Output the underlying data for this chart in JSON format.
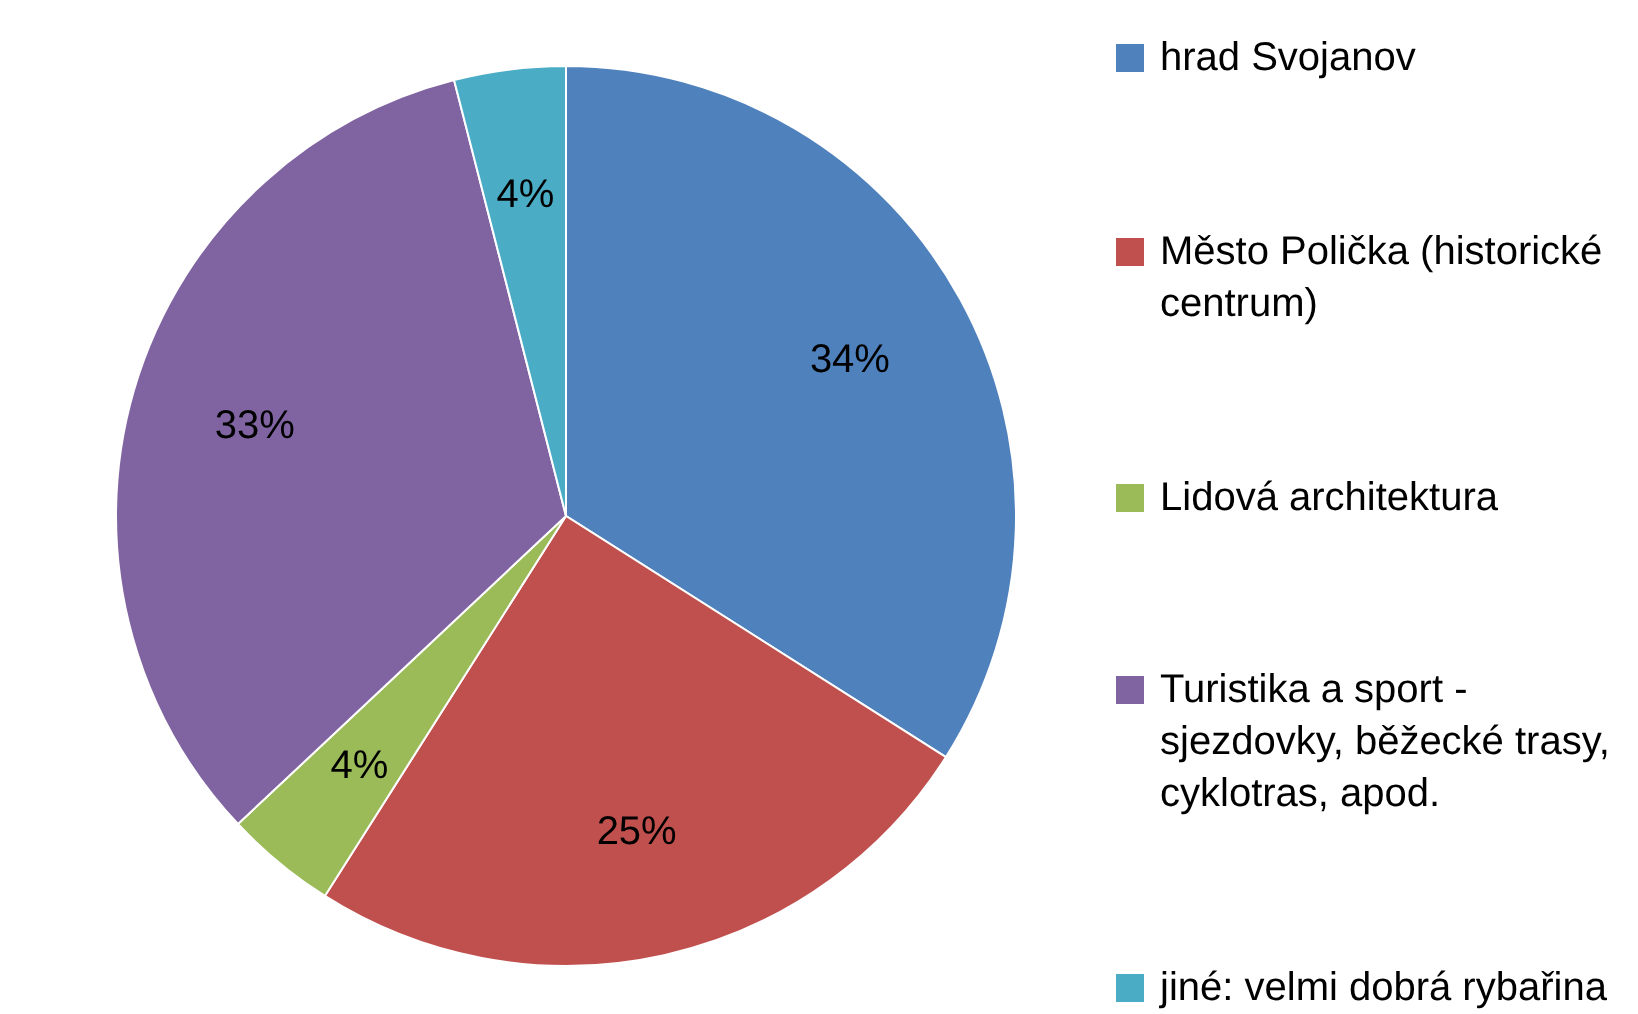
{
  "chart_data": {
    "type": "pie",
    "categories": [
      "hrad Svojanov",
      "Město Polička (historické centrum)",
      "Lidová architektura",
      "Turistika a sport - sjezdovky, běžecké trasy, cyklotras, apod.",
      "jiné: velmi dobrá rybařina"
    ],
    "values": [
      34,
      25,
      4,
      33,
      4
    ],
    "colors": [
      "#4f81bd",
      "#c0504d",
      "#9bbb59",
      "#8064a2",
      "#4bacc6"
    ],
    "value_labels": [
      "34%",
      "25%",
      "4%",
      "33%",
      "4%"
    ],
    "legend": "right"
  }
}
